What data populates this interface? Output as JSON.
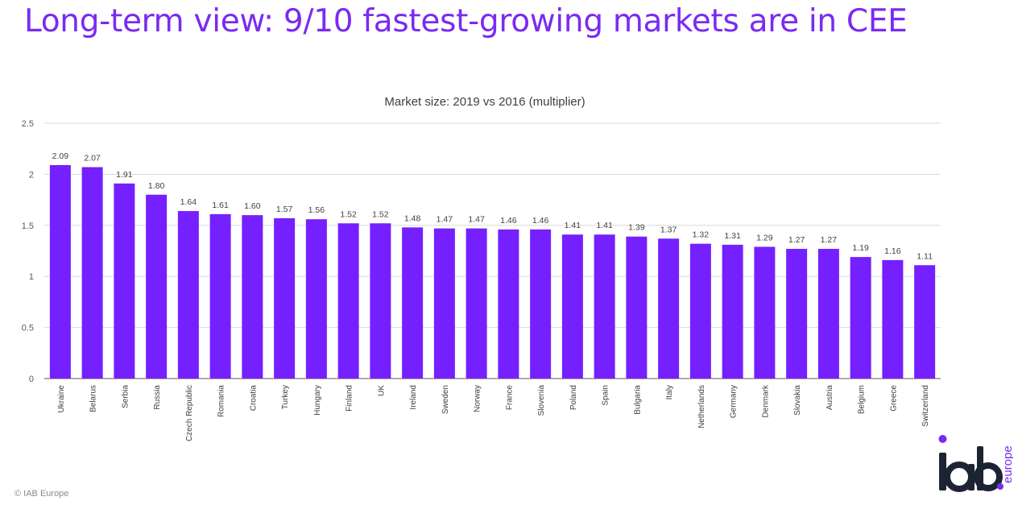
{
  "page": {
    "title": "Long-term view: 9/10 fastest-growing markets are in CEE",
    "copyright": "© IAB Europe"
  },
  "logo": {
    "main": "iab",
    "sub": "europe"
  },
  "colors": {
    "accent": "#7A2BF0",
    "bar": "#7420FF"
  },
  "chart_data": {
    "type": "bar",
    "title": "Market size: 2019 vs 2016 (multiplier)",
    "categories": [
      "Ukraine",
      "Belarus",
      "Serbia",
      "Russia",
      "Czech Republic",
      "Romania",
      "Croatia",
      "Turkey",
      "Hungary",
      "Finland",
      "UK",
      "Ireland",
      "Sweden",
      "Norway",
      "France",
      "Slovenia",
      "Poland",
      "Spain",
      "Bulgaria",
      "Italy",
      "Netherlands",
      "Germany",
      "Denmark",
      "Slovakia",
      "Austria",
      "Belgium",
      "Greece",
      "Switzerland"
    ],
    "values": [
      2.09,
      2.07,
      1.91,
      1.8,
      1.64,
      1.61,
      1.6,
      1.57,
      1.56,
      1.52,
      1.52,
      1.48,
      1.47,
      1.47,
      1.46,
      1.46,
      1.41,
      1.41,
      1.39,
      1.37,
      1.32,
      1.31,
      1.29,
      1.27,
      1.27,
      1.19,
      1.16,
      1.11
    ],
    "value_labels": [
      "2.09",
      "2.07",
      "1.91",
      "1.80",
      "1.64",
      "1.61",
      "1.60",
      "1.57",
      "1.56",
      "1.52",
      "1.52",
      "1.48",
      "1.47",
      "1.47",
      "1.46",
      "1.46",
      "1.41",
      "1.41",
      "1.39",
      "1.37",
      "1.32",
      "1.31",
      "1.29",
      "1.27",
      "1.27",
      "1.19",
      "1.16",
      "1.11"
    ],
    "yticks": [
      "0",
      "0.5",
      "1",
      "1.5",
      "2",
      "2.5"
    ],
    "ylim": [
      0,
      2.5
    ],
    "grid": true,
    "legend": "none"
  }
}
